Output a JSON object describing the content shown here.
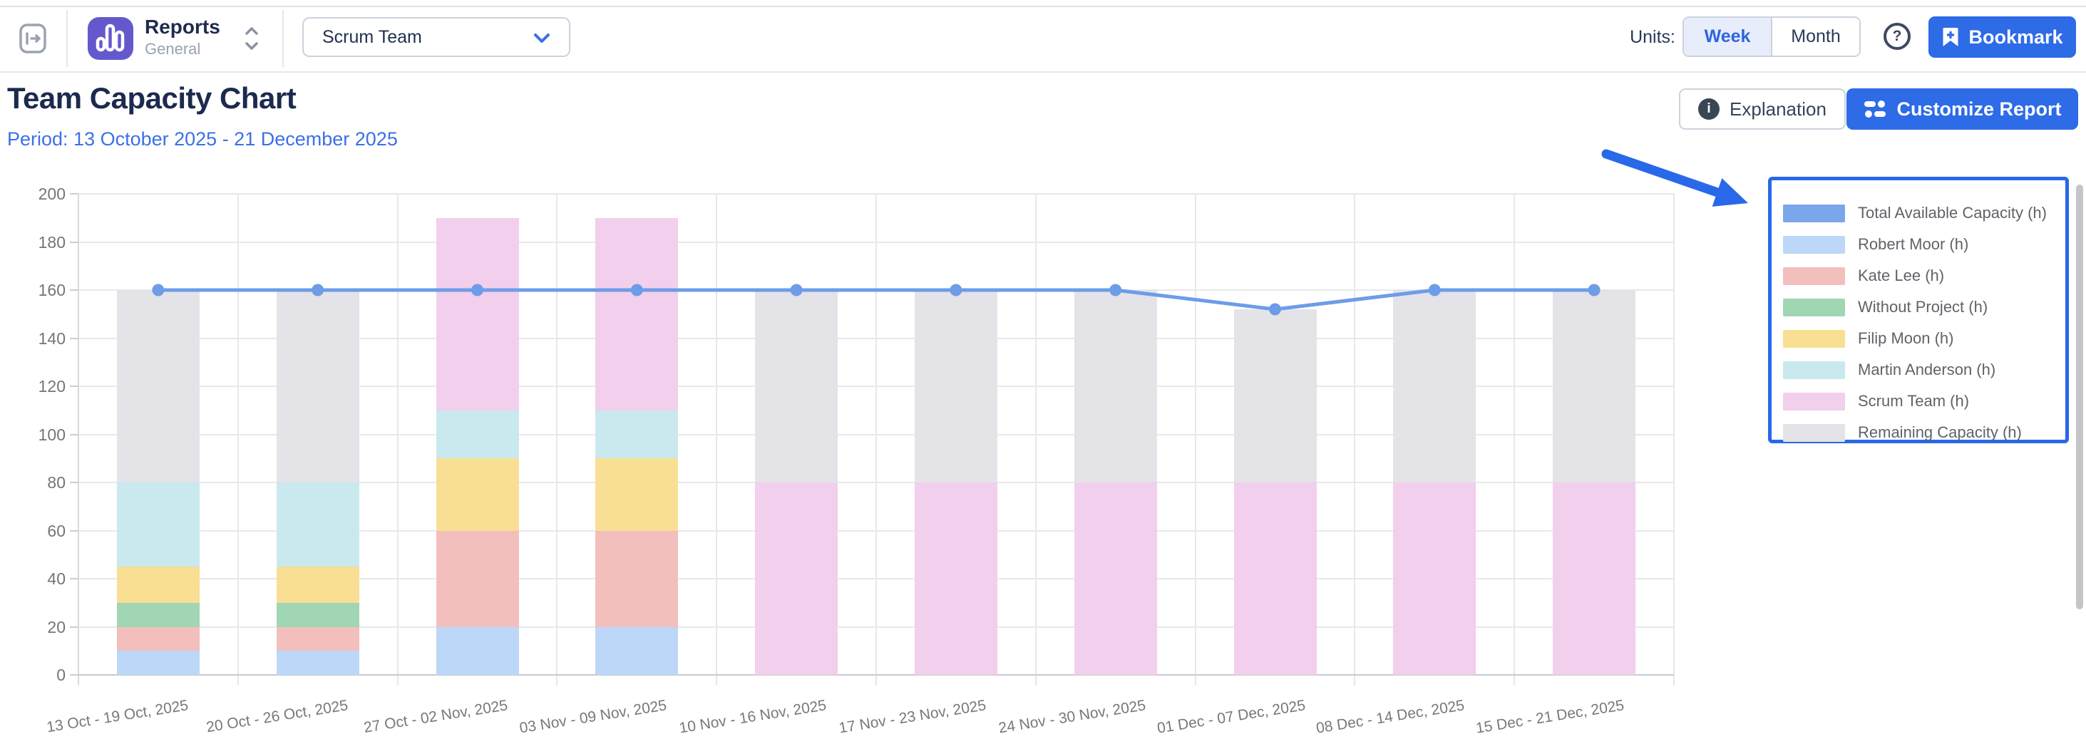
{
  "header": {
    "title": "Reports",
    "subtitle": "General",
    "team_dropdown": {
      "value": "Scrum Team"
    },
    "units_label": "Units:",
    "units": {
      "options": [
        "Week",
        "Month"
      ],
      "selected": "Week"
    },
    "help_label": "?",
    "bookmark_label": "Bookmark"
  },
  "toolbar": {
    "title": "Team Capacity Chart",
    "period": "Period: 13 October 2025 - 21 December 2025",
    "explanation_label": "Explanation",
    "info_glyph": "i",
    "customize_label": "Customize Report"
  },
  "chart_data": {
    "type": "stacked-bar-with-line",
    "title": "Team Capacity Chart",
    "units": "hours per week",
    "categories": [
      "13 Oct - 19 Oct, 2025",
      "20 Oct - 26 Oct, 2025",
      "27 Oct - 02 Nov, 2025",
      "03 Nov - 09 Nov, 2025",
      "10 Nov - 16 Nov, 2025",
      "17 Nov - 23 Nov, 2025",
      "24 Nov - 30 Nov, 2025",
      "01 Dec - 07 Dec, 2025",
      "08 Dec - 14 Dec, 2025",
      "15 Dec - 21 Dec, 2025"
    ],
    "y_axis": {
      "min": 0,
      "max": 200,
      "tick": 20
    },
    "grid": true,
    "line_series": {
      "name": "Total Available Capacity (h)",
      "color": "#6D9CE8",
      "values": [
        160,
        160,
        160,
        160,
        160,
        160,
        160,
        152,
        160,
        160
      ]
    },
    "stack_series": [
      {
        "name": "Robert Moor (h)",
        "color": "#BCD7F7",
        "values": [
          10,
          10,
          20,
          20,
          0,
          0,
          0,
          0,
          0,
          0
        ]
      },
      {
        "name": "Kate Lee (h)",
        "color": "#F3BFBC",
        "values": [
          10,
          10,
          40,
          40,
          0,
          0,
          0,
          0,
          0,
          0
        ]
      },
      {
        "name": "Without Project (h)",
        "color": "#A0D6B4",
        "values": [
          10,
          10,
          0,
          0,
          0,
          0,
          0,
          0,
          0,
          0
        ]
      },
      {
        "name": "Filip Moon (h)",
        "color": "#F8DF94",
        "values": [
          15,
          15,
          30,
          30,
          0,
          0,
          0,
          0,
          0,
          0
        ]
      },
      {
        "name": "Martin Anderson (h)",
        "color": "#C9E9EF",
        "values": [
          35,
          35,
          20,
          20,
          0,
          0,
          0,
          0,
          0,
          0
        ]
      },
      {
        "name": "Scrum Team (h)",
        "color": "#F2CFEC",
        "values": [
          0,
          0,
          80,
          80,
          80,
          80,
          80,
          80,
          80,
          80
        ]
      },
      {
        "name": "Remaining Capacity (h)",
        "color": "#E3E3E8",
        "values": [
          80,
          80,
          0,
          0,
          80,
          80,
          80,
          72,
          80,
          80
        ]
      }
    ],
    "legend": {
      "position": "right",
      "highlight_border_color": "#2968E8",
      "items": [
        {
          "label": "Total Available Capacity (h)",
          "color": "#7AA7EC"
        },
        {
          "label": "Robert Moor (h)",
          "color": "#BCD7F7"
        },
        {
          "label": "Kate Lee (h)",
          "color": "#F3BFBC"
        },
        {
          "label": "Without Project (h)",
          "color": "#A0D6B4"
        },
        {
          "label": "Filip Moon (h)",
          "color": "#F8DF94"
        },
        {
          "label": "Martin Anderson (h)",
          "color": "#C9E9EF"
        },
        {
          "label": "Scrum Team (h)",
          "color": "#F2CFEC"
        },
        {
          "label": "Remaining Capacity (h)",
          "color": "#E3E3E8"
        }
      ]
    },
    "annotation": {
      "type": "arrow",
      "color": "#2968E8",
      "target": "legend"
    }
  },
  "colors": {
    "accent_blue": "#2D6BE7",
    "link_blue": "#3C70E8",
    "title_navy": "#1C2A4E",
    "axis_text": "#757575"
  }
}
